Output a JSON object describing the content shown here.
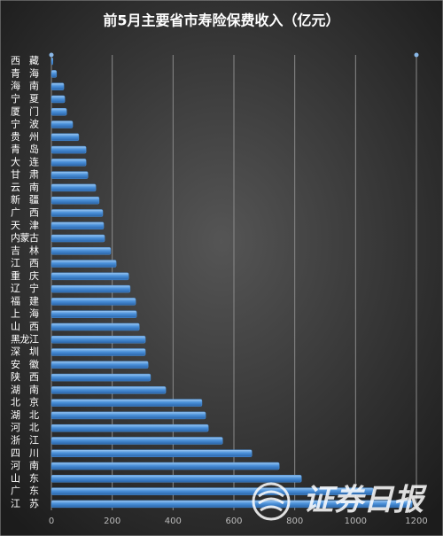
{
  "chart_data": {
    "type": "hbar",
    "title": "前5月主要省市寿险保费收入（亿元）",
    "categories": [
      "西藏",
      "青海",
      "海南",
      "宁夏",
      "厦门",
      "宁波",
      "贵州",
      "青岛",
      "大连",
      "甘肃",
      "云南",
      "新疆",
      "广西",
      "天津",
      "内蒙古",
      "吉林",
      "江西",
      "重庆",
      "辽宁",
      "福建",
      "上海",
      "山西",
      "黑龙江",
      "深圳",
      "安徽",
      "陕西",
      "湖南",
      "北京",
      "湖北",
      "河北",
      "浙江",
      "四川",
      "河南",
      "山东",
      "广东",
      "江苏"
    ],
    "values": [
      5,
      17,
      41,
      44,
      50,
      70,
      90,
      114,
      114,
      120,
      146,
      157,
      169,
      172,
      175,
      195,
      213,
      254,
      259,
      277,
      280,
      289,
      309,
      309,
      318,
      326,
      376,
      495,
      507,
      516,
      563,
      659,
      749,
      822,
      1058,
      1186
    ],
    "color": "#4a90d9",
    "xlim": [
      0,
      1200
    ],
    "xticks": [
      0,
      200,
      400,
      600,
      800,
      1000,
      1200
    ],
    "grid": true,
    "watermark": "证券日报"
  }
}
